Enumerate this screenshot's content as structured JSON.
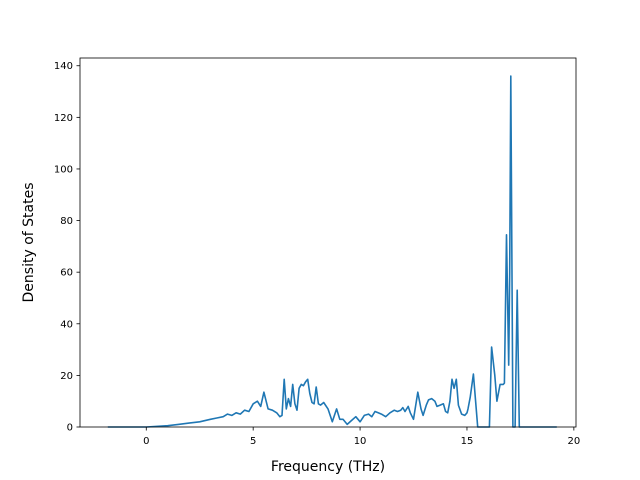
{
  "chart_data": {
    "type": "line",
    "title": "",
    "xlabel": "Frequency (THz)",
    "ylabel": "Density of States",
    "xlim": [
      -3.1,
      20.1
    ],
    "ylim": [
      0,
      143
    ],
    "xticks": [
      0,
      5,
      10,
      15,
      20
    ],
    "yticks": [
      0,
      20,
      40,
      60,
      80,
      100,
      120,
      140
    ],
    "grid": false,
    "legend": "none",
    "series": [
      {
        "color": "#1f77b4",
        "x": [
          -1.8,
          0.0,
          1.0,
          1.5,
          2.0,
          2.5,
          3.0,
          3.3,
          3.6,
          3.8,
          4.0,
          4.2,
          4.4,
          4.6,
          4.8,
          5.0,
          5.2,
          5.35,
          5.5,
          5.7,
          5.9,
          6.1,
          6.25,
          6.35,
          6.45,
          6.55,
          6.65,
          6.75,
          6.85,
          6.95,
          7.05,
          7.15,
          7.25,
          7.35,
          7.45,
          7.55,
          7.65,
          7.75,
          7.85,
          7.95,
          8.05,
          8.15,
          8.3,
          8.5,
          8.7,
          8.9,
          9.05,
          9.2,
          9.4,
          9.6,
          9.8,
          10.0,
          10.2,
          10.4,
          10.55,
          10.7,
          10.85,
          11.0,
          11.2,
          11.4,
          11.6,
          11.75,
          11.9,
          12.0,
          12.1,
          12.25,
          12.35,
          12.5,
          12.7,
          12.85,
          12.95,
          13.1,
          13.2,
          13.35,
          13.5,
          13.6,
          13.75,
          13.9,
          14.0,
          14.1,
          14.2,
          14.3,
          14.4,
          14.5,
          14.6,
          14.75,
          14.9,
          15.0,
          15.05,
          15.15,
          15.3,
          15.5,
          15.7,
          15.9,
          16.05,
          16.15,
          16.3,
          16.4,
          16.55,
          16.7,
          16.75,
          16.85,
          16.95,
          17.0,
          17.05,
          17.15,
          17.25,
          17.35,
          17.45,
          17.5,
          17.55,
          19.2
        ],
        "y": [
          0,
          0,
          0.5,
          1,
          1.5,
          2,
          3,
          3.5,
          4,
          5,
          4.5,
          5.5,
          5,
          6.5,
          6,
          9,
          10,
          8,
          13.5,
          7,
          6.5,
          5.5,
          4,
          4.5,
          18.5,
          7,
          11,
          8,
          16.5,
          9,
          6.5,
          15,
          16.5,
          16,
          17.5,
          18.5,
          13,
          9.5,
          9,
          15.5,
          9,
          8.5,
          9.5,
          7,
          2,
          7,
          3,
          3,
          1,
          2.5,
          4,
          2,
          4.5,
          5,
          4,
          6,
          5.5,
          5,
          4,
          5.5,
          6.5,
          6,
          6.5,
          7.5,
          6,
          8,
          5.5,
          3,
          13.5,
          7,
          4.5,
          8.5,
          10.5,
          11,
          10,
          8,
          8.5,
          9,
          6,
          5.5,
          10,
          18.5,
          15,
          18.5,
          8.5,
          5,
          4.5,
          5.5,
          7,
          11.5,
          20.5,
          0,
          0,
          0,
          0,
          31,
          20,
          10,
          16.5,
          16.5,
          17,
          74.5,
          24,
          60,
          136,
          0,
          0,
          53,
          0,
          0,
          0,
          0
        ]
      }
    ]
  }
}
